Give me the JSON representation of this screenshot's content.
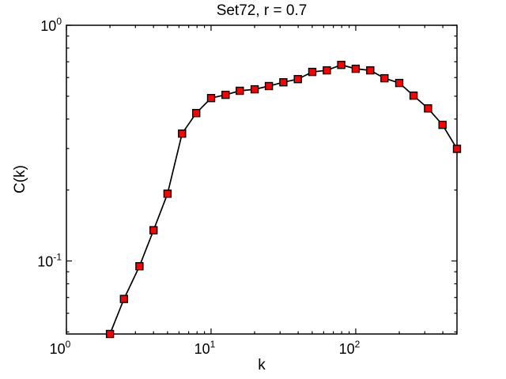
{
  "figure": {
    "background": "#ffffff",
    "axes_color": "#000000"
  },
  "chart_data": {
    "type": "line",
    "title": "Set72, r = 0.7",
    "xlabel": "k",
    "ylabel": "C(k)",
    "x_scale": "log",
    "y_scale": "log",
    "xlim": [
      1,
      501
    ],
    "ylim": [
      0.049,
      1
    ],
    "grid": false,
    "legend": null,
    "x_major_ticks": [
      {
        "value": 1,
        "base": "10",
        "exponent": "0"
      },
      {
        "value": 10,
        "base": "10",
        "exponent": "1"
      },
      {
        "value": 100,
        "base": "10",
        "exponent": "2"
      }
    ],
    "y_major_ticks": [
      {
        "value": 1,
        "base": "10",
        "exponent": "0"
      },
      {
        "value": 0.1,
        "base": "10",
        "exponent": "-1"
      }
    ],
    "series": [
      {
        "name": "C(k) vs k",
        "marker": "square",
        "marker_fill": "#ff0000",
        "marker_edge": "#000000",
        "line_color": "#000000",
        "x": [
          2.0,
          2.5,
          3.2,
          4.0,
          5.0,
          6.3,
          7.9,
          10,
          12.6,
          15.8,
          20,
          25.1,
          31.6,
          39.8,
          50.1,
          63.1,
          79.4,
          100,
          126,
          158,
          200,
          251,
          316,
          398,
          501
        ],
        "y": [
          0.049,
          0.069,
          0.095,
          0.135,
          0.193,
          0.347,
          0.424,
          0.491,
          0.507,
          0.527,
          0.535,
          0.552,
          0.573,
          0.591,
          0.634,
          0.644,
          0.679,
          0.654,
          0.644,
          0.596,
          0.569,
          0.503,
          0.444,
          0.378,
          0.299
        ]
      }
    ]
  }
}
